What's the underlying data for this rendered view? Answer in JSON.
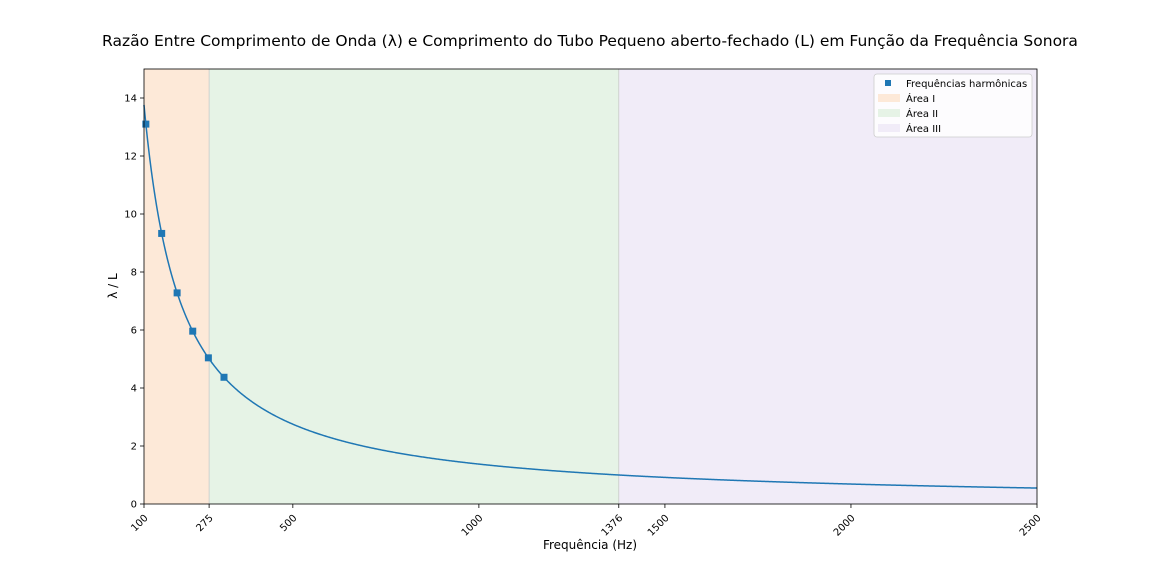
{
  "chart_data": {
    "type": "line",
    "title": "Razão Entre Comprimento de Onda (λ) e Comprimento do Tubo Pequeno aberto-fechado (L) em Função da Frequência Sonora",
    "xlabel": "Frequência (Hz)",
    "ylabel": "λ / L",
    "xlim": [
      100,
      2500
    ],
    "ylim": [
      0,
      15
    ],
    "x_ticks": [
      100,
      275,
      500,
      1000,
      1376,
      1500,
      2000,
      2500
    ],
    "y_ticks": [
      0,
      2,
      4,
      6,
      8,
      10,
      12,
      14
    ],
    "grid": false,
    "legend_position": "top-right",
    "curve": {
      "formula": "1376 / f",
      "x_start": 100,
      "x_end": 2500,
      "color": "#1f77b4"
    },
    "harmonic_points": {
      "name": "Frequências harmônicas",
      "marker": "square",
      "color": "#1f77b4",
      "x": [
        105,
        147.5,
        189,
        231,
        273,
        315
      ],
      "y": [
        13.1,
        9.33,
        7.28,
        5.96,
        5.04,
        4.37
      ]
    },
    "regions": [
      {
        "name": "Área I",
        "x_start": 100,
        "x_end": 275,
        "color": "#fde9d8"
      },
      {
        "name": "Área II",
        "x_start": 275,
        "x_end": 1376,
        "color": "#e6f3e6"
      },
      {
        "name": "Área III",
        "x_start": 1376,
        "x_end": 2500,
        "color": "#f1ecf8"
      }
    ]
  }
}
